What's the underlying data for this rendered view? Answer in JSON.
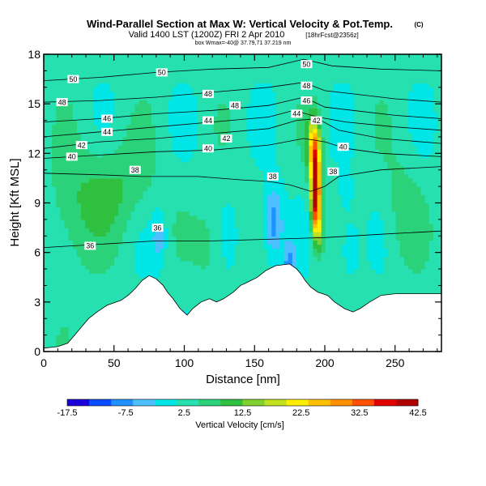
{
  "header": {
    "title": "Wind-Parallel Section at Max W: Vertical Velocity & Pot.Temp.",
    "title_mark": "(C)",
    "subtitle": "Valid 1400 LST (1200Z) FRI 2 Apr 2010",
    "subtitle_suffix": "[18hrFcst@2356z]",
    "info": "box Wmax=-40@ 37.79,71 37.219 nm"
  },
  "chart_data": {
    "type": "heatmap",
    "xlabel": "Distance [nm]",
    "ylabel": "Height [Kft MSL]",
    "xlim": [
      0,
      283
    ],
    "ylim": [
      0,
      18
    ],
    "x_ticks": [
      0,
      50,
      100,
      150,
      200,
      250
    ],
    "y_ticks": [
      0,
      3,
      6,
      9,
      12,
      15,
      18
    ],
    "field": "Vertical Velocity",
    "colorbar": {
      "label": "Vertical Velocity [cm/s]",
      "tick_labels": [
        "-17.5",
        "-7.5",
        "2.5",
        "12.5",
        "22.5",
        "32.5",
        "42.5"
      ],
      "min": -17.5,
      "max": 42.5,
      "colors": [
        "#1a00d9",
        "#0a4cff",
        "#1e90ff",
        "#4fc0ff",
        "#00e5e5",
        "#26e0b0",
        "#2bd27a",
        "#30c040",
        "#80d030",
        "#c0e020",
        "#ffee00",
        "#ffc000",
        "#ff9000",
        "#ff5000",
        "#e00000",
        "#b00000"
      ]
    },
    "terrain": [
      [
        0,
        0.2
      ],
      [
        10,
        0.3
      ],
      [
        17,
        0.5
      ],
      [
        22,
        1.0
      ],
      [
        27,
        1.5
      ],
      [
        32,
        2.0
      ],
      [
        38,
        2.4
      ],
      [
        45,
        2.8
      ],
      [
        55,
        3.1
      ],
      [
        60,
        3.4
      ],
      [
        65,
        3.8
      ],
      [
        70,
        4.3
      ],
      [
        75,
        4.6
      ],
      [
        80,
        4.4
      ],
      [
        85,
        4.0
      ],
      [
        88,
        3.6
      ],
      [
        92,
        3.2
      ],
      [
        97,
        2.6
      ],
      [
        102,
        2.2
      ],
      [
        106,
        2.6
      ],
      [
        112,
        3.0
      ],
      [
        118,
        3.2
      ],
      [
        123,
        3.0
      ],
      [
        128,
        3.2
      ],
      [
        135,
        3.6
      ],
      [
        140,
        4.0
      ],
      [
        145,
        4.2
      ],
      [
        152,
        4.5
      ],
      [
        158,
        4.9
      ],
      [
        165,
        5.2
      ],
      [
        175,
        5.3
      ],
      [
        180,
        5.0
      ],
      [
        183,
        4.7
      ],
      [
        186,
        4.3
      ],
      [
        190,
        3.9
      ],
      [
        195,
        3.6
      ],
      [
        202,
        3.4
      ],
      [
        207,
        3.0
      ],
      [
        214,
        2.6
      ],
      [
        220,
        2.4
      ],
      [
        225,
        2.6
      ],
      [
        232,
        3.0
      ],
      [
        240,
        3.4
      ],
      [
        250,
        3.5
      ],
      [
        283,
        3.5
      ]
    ],
    "theta_contours": [
      {
        "label": "36",
        "points": [
          [
            0,
            6.3
          ],
          [
            40,
            6.5
          ],
          [
            80,
            6.7
          ],
          [
            120,
            6.7
          ],
          [
            160,
            6.8
          ],
          [
            200,
            6.9
          ],
          [
            240,
            7.1
          ],
          [
            283,
            7.3
          ]
        ]
      },
      {
        "label": "38",
        "points": [
          [
            0,
            10.8
          ],
          [
            40,
            10.7
          ],
          [
            70,
            10.6
          ],
          [
            110,
            10.6
          ],
          [
            140,
            10.4
          ],
          [
            160,
            10.3
          ],
          [
            175,
            10.1
          ],
          [
            190,
            9.7
          ],
          [
            200,
            10.0
          ],
          [
            210,
            10.6
          ],
          [
            240,
            11.0
          ],
          [
            283,
            11.2
          ]
        ]
      },
      {
        "label": "40",
        "points": [
          [
            0,
            11.7
          ],
          [
            40,
            11.9
          ],
          [
            80,
            12.1
          ],
          [
            120,
            12.2
          ],
          [
            160,
            12.5
          ],
          [
            185,
            12.9
          ],
          [
            200,
            12.7
          ],
          [
            215,
            12.3
          ],
          [
            240,
            12.0
          ],
          [
            283,
            11.8
          ]
        ]
      },
      {
        "label": "42",
        "points": [
          [
            0,
            12.3
          ],
          [
            40,
            12.7
          ],
          [
            80,
            12.9
          ],
          [
            120,
            13.2
          ],
          [
            160,
            13.5
          ],
          [
            180,
            14.0
          ],
          [
            195,
            14.1
          ],
          [
            210,
            13.4
          ],
          [
            240,
            12.9
          ],
          [
            283,
            12.6
          ]
        ]
      },
      {
        "label": "44",
        "points": [
          [
            0,
            13.0
          ],
          [
            40,
            13.3
          ],
          [
            80,
            13.6
          ],
          [
            120,
            13.9
          ],
          [
            160,
            14.2
          ],
          [
            178,
            14.6
          ],
          [
            195,
            14.2
          ],
          [
            215,
            13.9
          ],
          [
            250,
            13.6
          ],
          [
            283,
            13.4
          ]
        ]
      },
      {
        "label": "46",
        "points": [
          [
            0,
            13.9
          ],
          [
            40,
            14.1
          ],
          [
            80,
            14.4
          ],
          [
            120,
            14.6
          ],
          [
            160,
            14.9
          ],
          [
            185,
            15.4
          ],
          [
            200,
            14.8
          ],
          [
            220,
            14.6
          ],
          [
            250,
            14.3
          ],
          [
            283,
            14.1
          ]
        ]
      },
      {
        "label": "48",
        "points": [
          [
            0,
            15.1
          ],
          [
            40,
            15.2
          ],
          [
            80,
            15.4
          ],
          [
            120,
            15.7
          ],
          [
            160,
            16.0
          ],
          [
            185,
            16.3
          ],
          [
            200,
            15.8
          ],
          [
            220,
            15.6
          ],
          [
            250,
            15.3
          ],
          [
            283,
            15.1
          ]
        ]
      },
      {
        "label": "50",
        "points": [
          [
            0,
            16.4
          ],
          [
            40,
            16.6
          ],
          [
            80,
            16.9
          ],
          [
            120,
            17.1
          ],
          [
            160,
            17.2
          ],
          [
            185,
            17.7
          ],
          [
            205,
            17.3
          ],
          [
            240,
            17.1
          ],
          [
            283,
            17.0
          ]
        ]
      }
    ],
    "contour_labels": [
      {
        "text": "50",
        "x": 21,
        "y": 16.5
      },
      {
        "text": "50",
        "x": 84,
        "y": 16.9
      },
      {
        "text": "50",
        "x": 187,
        "y": 17.4
      },
      {
        "text": "48",
        "x": 13,
        "y": 15.1
      },
      {
        "text": "48",
        "x": 117,
        "y": 15.6
      },
      {
        "text": "48",
        "x": 136,
        "y": 14.9
      },
      {
        "text": "48",
        "x": 187,
        "y": 16.1
      },
      {
        "text": "46",
        "x": 45,
        "y": 14.1
      },
      {
        "text": "46",
        "x": 187,
        "y": 15.2
      },
      {
        "text": "44",
        "x": 45,
        "y": 13.3
      },
      {
        "text": "44",
        "x": 117,
        "y": 14.0
      },
      {
        "text": "44",
        "x": 180,
        "y": 14.4
      },
      {
        "text": "42",
        "x": 27,
        "y": 12.5
      },
      {
        "text": "42",
        "x": 130,
        "y": 12.9
      },
      {
        "text": "42",
        "x": 194,
        "y": 14.0
      },
      {
        "text": "40",
        "x": 20,
        "y": 11.8
      },
      {
        "text": "40",
        "x": 117,
        "y": 12.3
      },
      {
        "text": "40",
        "x": 213,
        "y": 12.4
      },
      {
        "text": "38",
        "x": 65,
        "y": 11.0
      },
      {
        "text": "38",
        "x": 163,
        "y": 10.6
      },
      {
        "text": "38",
        "x": 206,
        "y": 10.9
      },
      {
        "text": "36",
        "x": 33,
        "y": 6.4
      },
      {
        "text": "36",
        "x": 81,
        "y": 7.5
      }
    ]
  }
}
